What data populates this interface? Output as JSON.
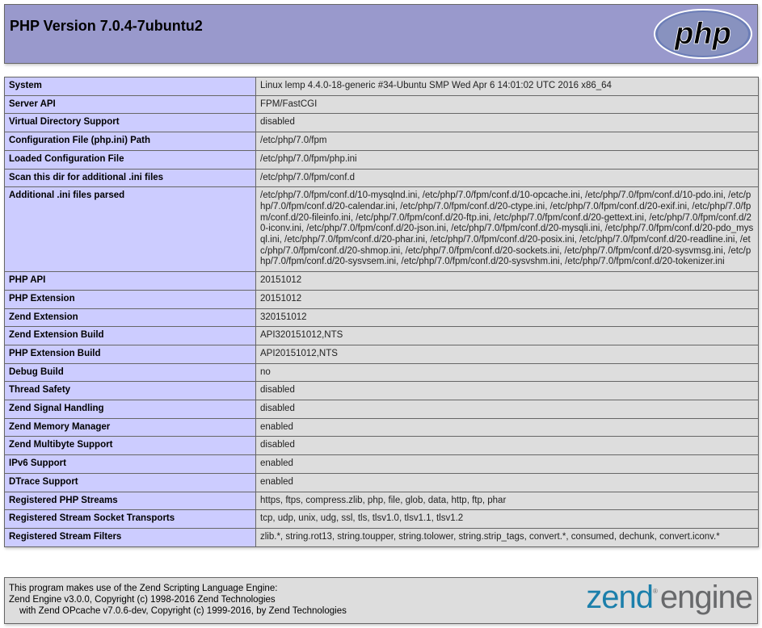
{
  "header": {
    "title": "PHP Version 7.0.4-7ubuntu2",
    "logo_text": "php"
  },
  "rows": [
    [
      "System",
      "Linux lemp 4.4.0-18-generic #34-Ubuntu SMP Wed Apr 6 14:01:02 UTC 2016 x86_64"
    ],
    [
      "Server API",
      "FPM/FastCGI"
    ],
    [
      "Virtual Directory Support",
      "disabled"
    ],
    [
      "Configuration File (php.ini) Path",
      "/etc/php/7.0/fpm"
    ],
    [
      "Loaded Configuration File",
      "/etc/php/7.0/fpm/php.ini"
    ],
    [
      "Scan this dir for additional .ini files",
      "/etc/php/7.0/fpm/conf.d"
    ],
    [
      "Additional .ini files parsed",
      "/etc/php/7.0/fpm/conf.d/10-mysqlnd.ini, /etc/php/7.0/fpm/conf.d/10-opcache.ini, /etc/php/7.0/fpm/conf.d/10-pdo.ini, /etc/php/7.0/fpm/conf.d/20-calendar.ini, /etc/php/7.0/fpm/conf.d/20-ctype.ini, /etc/php/7.0/fpm/conf.d/20-exif.ini, /etc/php/7.0/fpm/conf.d/20-fileinfo.ini, /etc/php/7.0/fpm/conf.d/20-ftp.ini, /etc/php/7.0/fpm/conf.d/20-gettext.ini, /etc/php/7.0/fpm/conf.d/20-iconv.ini, /etc/php/7.0/fpm/conf.d/20-json.ini, /etc/php/7.0/fpm/conf.d/20-mysqli.ini, /etc/php/7.0/fpm/conf.d/20-pdo_mysql.ini, /etc/php/7.0/fpm/conf.d/20-phar.ini, /etc/php/7.0/fpm/conf.d/20-posix.ini, /etc/php/7.0/fpm/conf.d/20-readline.ini, /etc/php/7.0/fpm/conf.d/20-shmop.ini, /etc/php/7.0/fpm/conf.d/20-sockets.ini, /etc/php/7.0/fpm/conf.d/20-sysvmsg.ini, /etc/php/7.0/fpm/conf.d/20-sysvsem.ini, /etc/php/7.0/fpm/conf.d/20-sysvshm.ini, /etc/php/7.0/fpm/conf.d/20-tokenizer.ini"
    ],
    [
      "PHP API",
      "20151012"
    ],
    [
      "PHP Extension",
      "20151012"
    ],
    [
      "Zend Extension",
      "320151012"
    ],
    [
      "Zend Extension Build",
      "API320151012,NTS"
    ],
    [
      "PHP Extension Build",
      "API20151012,NTS"
    ],
    [
      "Debug Build",
      "no"
    ],
    [
      "Thread Safety",
      "disabled"
    ],
    [
      "Zend Signal Handling",
      "disabled"
    ],
    [
      "Zend Memory Manager",
      "enabled"
    ],
    [
      "Zend Multibyte Support",
      "disabled"
    ],
    [
      "IPv6 Support",
      "enabled"
    ],
    [
      "DTrace Support",
      "enabled"
    ],
    [
      "Registered PHP Streams",
      "https, ftps, compress.zlib, php, file, glob, data, http, ftp, phar"
    ],
    [
      "Registered Stream Socket Transports",
      "tcp, udp, unix, udg, ssl, tls, tlsv1.0, tlsv1.1, tlsv1.2"
    ],
    [
      "Registered Stream Filters",
      "zlib.*, string.rot13, string.toupper, string.tolower, string.strip_tags, convert.*, consumed, dechunk, convert.iconv.*"
    ]
  ],
  "footer": {
    "line1": "This program makes use of the Zend Scripting Language Engine:",
    "line2": "Zend Engine v3.0.0, Copyright (c) 1998-2016 Zend Technologies",
    "line3": "with Zend OPcache v7.0.6-dev, Copyright (c) 1999-2016, by Zend Technologies",
    "logo_zend": "zend",
    "logo_engine": "engine"
  },
  "colors": {
    "header": "#9999cc",
    "label_cell": "#ccccff",
    "value_cell": "#dddddd"
  }
}
